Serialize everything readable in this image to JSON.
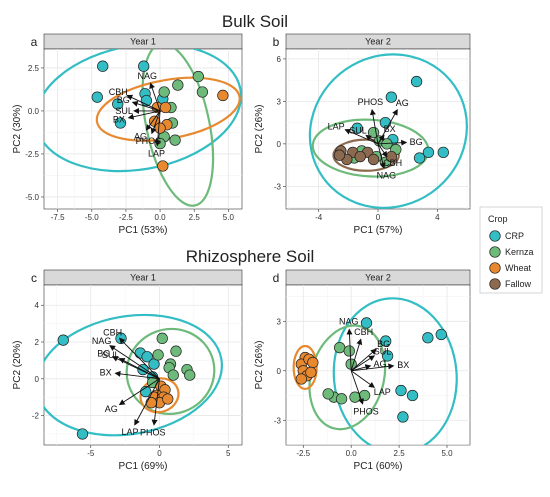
{
  "titles": {
    "top": "Bulk Soil",
    "bottom": "Rhizosphere Soil"
  },
  "legend": {
    "title": "Crop",
    "items": [
      {
        "label": "CRP",
        "color": "#33BDC4"
      },
      {
        "label": "Kernza",
        "color": "#6DBA7A"
      },
      {
        "label": "Wheat",
        "color": "#E8892F"
      },
      {
        "label": "Fallow",
        "color": "#8C6A4F"
      }
    ]
  },
  "chart_data": [
    {
      "type": "scatter",
      "panel": "a",
      "facet": "Year 1",
      "xlabel": "PC1 (53%)",
      "ylabel": "PC2 (30%)",
      "xlim": [
        -8.5,
        6
      ],
      "ylim": [
        -5.7,
        3.6
      ],
      "xticks": [
        -7.5,
        -5.0,
        -2.5,
        0.0,
        2.5,
        5.0
      ],
      "xtick_labels": [
        "-7.5",
        "-5.0",
        "-2.5",
        "0.0",
        "2.5",
        "5.0"
      ],
      "yticks": [
        -5.0,
        -2.5,
        0.0,
        2.5
      ],
      "ytick_labels": [
        "-5.0",
        "-2.5",
        "0.0",
        "2.5"
      ],
      "grid": true,
      "series": [
        {
          "name": "CRP",
          "points": [
            [
              -4.2,
              2.6
            ],
            [
              -1.2,
              2.6
            ],
            [
              -4.6,
              0.8
            ],
            [
              -3.1,
              0.4
            ],
            [
              -1.1,
              1.0
            ],
            [
              -1.0,
              0.6
            ],
            [
              -2.9,
              -0.7
            ],
            [
              0.2,
              0.7
            ]
          ]
        },
        {
          "name": "Kernza",
          "points": [
            [
              1.3,
              1.5
            ],
            [
              2.8,
              2.0
            ],
            [
              3.1,
              1.1
            ],
            [
              0.3,
              1.1
            ],
            [
              0.8,
              0.2
            ],
            [
              0.9,
              -0.7
            ],
            [
              0.3,
              -1.5
            ],
            [
              1.1,
              -1.7
            ],
            [
              0.0,
              -1.9
            ]
          ]
        },
        {
          "name": "Wheat",
          "points": [
            [
              4.6,
              0.9
            ],
            [
              -0.2,
              0.2
            ],
            [
              0.4,
              0.2
            ],
            [
              -0.4,
              -0.6
            ],
            [
              0.5,
              -0.8
            ],
            [
              0.0,
              -1.0
            ],
            [
              0.2,
              -3.2
            ]
          ]
        }
      ],
      "ellipses": [
        {
          "series": "CRP",
          "cx": -1.6,
          "cy": 0.2,
          "rx": 7.6,
          "ry": 3.6,
          "angle": 10
        },
        {
          "series": "Kernza",
          "cx": 1.3,
          "cy": -0.8,
          "rx": 2.3,
          "ry": 4.8,
          "angle": 12
        },
        {
          "series": "Wheat",
          "cx": 0.6,
          "cy": 0.1,
          "rx": 5.3,
          "ry": 1.7,
          "angle": 10
        }
      ],
      "loadings": [
        {
          "label": "NAG",
          "x": -0.7,
          "y": 1.6
        },
        {
          "label": "CBH",
          "x": -2.4,
          "y": 0.9
        },
        {
          "label": "BG",
          "x": -2.0,
          "y": 0.5
        },
        {
          "label": "SUL",
          "x": -1.9,
          "y": 0.0
        },
        {
          "label": "BX",
          "x": -2.3,
          "y": -0.4
        },
        {
          "label": "AG",
          "x": -1.0,
          "y": -1.1
        },
        {
          "label": "PHOS",
          "x": -0.6,
          "y": -1.3
        },
        {
          "label": "LAP",
          "x": -0.2,
          "y": -2.0
        }
      ]
    },
    {
      "type": "scatter",
      "panel": "b",
      "facet": "Year 2",
      "xlabel": "PC1 (57%)",
      "ylabel": "PC2 (26%)",
      "xlim": [
        -6.2,
        6.2
      ],
      "ylim": [
        -4.6,
        6.7
      ],
      "xticks": [
        -4,
        0,
        4
      ],
      "xtick_labels": [
        "-4",
        "0",
        "4"
      ],
      "yticks": [
        -3,
        0,
        3,
        6
      ],
      "ytick_labels": [
        "-3",
        "0",
        "3",
        "6"
      ],
      "grid": true,
      "series": [
        {
          "name": "CRP",
          "points": [
            [
              2.6,
              4.4
            ],
            [
              0.9,
              3.3
            ],
            [
              0.5,
              1.5
            ],
            [
              1.0,
              0.3
            ],
            [
              3.4,
              -0.6
            ],
            [
              2.8,
              -1.0
            ],
            [
              4.4,
              -0.6
            ],
            [
              -1.4,
              1.1
            ]
          ]
        },
        {
          "name": "Kernza",
          "points": [
            [
              -0.3,
              0.8
            ],
            [
              0.1,
              0.2
            ],
            [
              0.6,
              0.0
            ],
            [
              1.2,
              -0.4
            ],
            [
              -1.1,
              -0.5
            ],
            [
              -0.1,
              -0.9
            ],
            [
              -1.6,
              -1.0
            ],
            [
              0.5,
              -1.3
            ]
          ]
        },
        {
          "name": "Fallow",
          "points": [
            [
              -2.5,
              -0.5
            ],
            [
              -1.7,
              -0.6
            ],
            [
              -0.7,
              -0.6
            ],
            [
              -1.2,
              -0.9
            ],
            [
              -2.1,
              -1.1
            ],
            [
              -0.3,
              -1.1
            ],
            [
              -2.6,
              -0.8
            ],
            [
              0.9,
              -0.9
            ]
          ]
        }
      ],
      "ellipses": [
        {
          "series": "CRP",
          "cx": 0.7,
          "cy": 0.9,
          "rx": 5.4,
          "ry": 5.3,
          "angle": 35
        },
        {
          "series": "Kernza",
          "cx": -0.5,
          "cy": -0.3,
          "rx": 3.9,
          "ry": 2.0,
          "angle": -3
        },
        {
          "series": "Fallow",
          "cx": -0.8,
          "cy": -0.8,
          "rx": 2.2,
          "ry": 1.1,
          "angle": 0
        }
      ],
      "loadings": [
        {
          "label": "PHOS",
          "x": -0.4,
          "y": 2.4
        },
        {
          "label": "AG",
          "x": 1.3,
          "y": 2.4
        },
        {
          "label": "LAP",
          "x": -2.2,
          "y": 1.0
        },
        {
          "label": "SUL",
          "x": -0.8,
          "y": 0.6
        },
        {
          "label": "BX",
          "x": 0.4,
          "y": 0.6
        },
        {
          "label": "BG",
          "x": 1.9,
          "y": 0.1
        },
        {
          "label": "CBH",
          "x": 0.6,
          "y": -0.9
        },
        {
          "label": "NAG",
          "x": 0.4,
          "y": -1.7
        }
      ]
    },
    {
      "type": "scatter",
      "panel": "c",
      "facet": "Year 1",
      "xlabel": "PC1 (69%)",
      "ylabel": "PC2 (20%)",
      "xlim": [
        -8.4,
        6.0
      ],
      "ylim": [
        -3.6,
        5.1
      ],
      "xticks": [
        -5,
        0,
        5
      ],
      "xtick_labels": [
        "-5",
        "0",
        "5"
      ],
      "yticks": [
        -2,
        0,
        2,
        4
      ],
      "ytick_labels": [
        "-2",
        "0",
        "2",
        "4"
      ],
      "grid": true,
      "series": [
        {
          "name": "CRP",
          "points": [
            [
              -7.0,
              2.1
            ],
            [
              -5.6,
              -3.0
            ],
            [
              -2.8,
              2.2
            ],
            [
              -1.4,
              1.4
            ],
            [
              -0.9,
              1.2
            ],
            [
              -0.4,
              0.8
            ],
            [
              -1.2,
              0.5
            ],
            [
              -0.5,
              0.1
            ],
            [
              -1.0,
              -0.7
            ]
          ]
        },
        {
          "name": "Kernza",
          "points": [
            [
              0.2,
              2.2
            ],
            [
              1.2,
              1.5
            ],
            [
              -0.1,
              1.3
            ],
            [
              0.8,
              0.8
            ],
            [
              2.0,
              0.5
            ],
            [
              0.7,
              0.6
            ],
            [
              2.2,
              0.2
            ],
            [
              1.0,
              0.2
            ],
            [
              -0.5,
              -0.2
            ]
          ]
        },
        {
          "name": "Wheat",
          "points": [
            [
              0.1,
              -0.4
            ],
            [
              0.4,
              -0.6
            ],
            [
              -0.2,
              -0.9
            ],
            [
              0.3,
              -1.0
            ],
            [
              -0.4,
              -1.0
            ],
            [
              0.0,
              -1.3
            ],
            [
              0.6,
              -1.1
            ],
            [
              -0.6,
              -1.3
            ]
          ]
        }
      ],
      "ellipses": [
        {
          "series": "CRP",
          "cx": -2.2,
          "cy": 0.2,
          "rx": 6.8,
          "ry": 3.2,
          "angle": 10
        },
        {
          "series": "Kernza",
          "cx": 0.8,
          "cy": 0.4,
          "rx": 3.2,
          "ry": 2.3,
          "angle": 20
        },
        {
          "series": "Wheat",
          "cx": 0.0,
          "cy": -0.9,
          "rx": 1.4,
          "ry": 0.9,
          "angle": 20
        }
      ],
      "loadings": [
        {
          "label": "CBH",
          "x": -2.9,
          "y": 2.2
        },
        {
          "label": "NAG",
          "x": -3.6,
          "y": 1.8
        },
        {
          "label": "BG",
          "x": -3.4,
          "y": 1.2
        },
        {
          "label": "SUL",
          "x": -2.9,
          "y": 1.1
        },
        {
          "label": "BX",
          "x": -3.2,
          "y": 0.3
        },
        {
          "label": "AG",
          "x": -2.9,
          "y": -1.4
        },
        {
          "label": "LAP",
          "x": -1.8,
          "y": -2.5
        },
        {
          "label": "PHOS",
          "x": -0.4,
          "y": -2.5
        }
      ]
    },
    {
      "type": "scatter",
      "panel": "d",
      "facet": "Year 2",
      "xlabel": "PC1 (60%)",
      "ylabel": "PC2 (26%)",
      "xlim": [
        -3.4,
        6.2
      ],
      "ylim": [
        -4.5,
        5.2
      ],
      "xticks": [
        -2.5,
        0.0,
        2.5,
        5.0
      ],
      "xtick_labels": [
        "-2.5",
        "0.0",
        "2.5",
        "5.0"
      ],
      "yticks": [
        -3,
        0,
        3
      ],
      "ytick_labels": [
        "-3",
        "0",
        "3"
      ],
      "grid": true,
      "series": [
        {
          "name": "CRP",
          "points": [
            [
              0.8,
              2.9
            ],
            [
              1.8,
              1.8
            ],
            [
              4.0,
              2.0
            ],
            [
              4.7,
              2.2
            ],
            [
              1.9,
              0.9
            ],
            [
              2.6,
              -1.2
            ],
            [
              3.2,
              -1.5
            ],
            [
              2.7,
              -2.8
            ]
          ]
        },
        {
          "name": "Kernza",
          "points": [
            [
              -0.6,
              1.4
            ],
            [
              -0.1,
              1.2
            ],
            [
              0.0,
              0.4
            ],
            [
              -0.9,
              -1.6
            ],
            [
              -0.5,
              -1.7
            ],
            [
              0.2,
              -1.6
            ],
            [
              0.7,
              -1.5
            ],
            [
              -1.2,
              -1.4
            ]
          ]
        },
        {
          "name": "Wheat",
          "points": [
            [
              -2.4,
              0.8
            ],
            [
              -2.6,
              0.4
            ],
            [
              -2.2,
              0.7
            ],
            [
              -2.5,
              0.0
            ],
            [
              -2.0,
              0.5
            ],
            [
              -2.3,
              -0.3
            ],
            [
              -2.6,
              -0.5
            ],
            [
              -2.1,
              -0.1
            ]
          ]
        }
      ],
      "ellipses": [
        {
          "series": "CRP",
          "cx": 2.3,
          "cy": -0.3,
          "rx": 3.2,
          "ry": 4.7,
          "angle": 5
        },
        {
          "series": "Kernza",
          "cx": -0.2,
          "cy": -0.4,
          "rx": 1.9,
          "ry": 3.2,
          "angle": -15
        },
        {
          "series": "Wheat",
          "cx": -2.4,
          "cy": 0.2,
          "rx": 0.6,
          "ry": 1.3,
          "angle": 0
        }
      ],
      "loadings": [
        {
          "label": "NAG",
          "x": -0.1,
          "y": 2.5
        },
        {
          "label": "CBH",
          "x": 0.5,
          "y": 1.9
        },
        {
          "label": "BG",
          "x": 1.3,
          "y": 1.3
        },
        {
          "label": "SUL",
          "x": 1.2,
          "y": 0.9
        },
        {
          "label": "AG",
          "x": 1.0,
          "y": 0.3
        },
        {
          "label": "BX",
          "x": 2.2,
          "y": 0.3
        },
        {
          "label": "LAP",
          "x": 1.2,
          "y": -1.0
        },
        {
          "label": "PHOS",
          "x": 0.6,
          "y": -2.0
        }
      ]
    }
  ]
}
